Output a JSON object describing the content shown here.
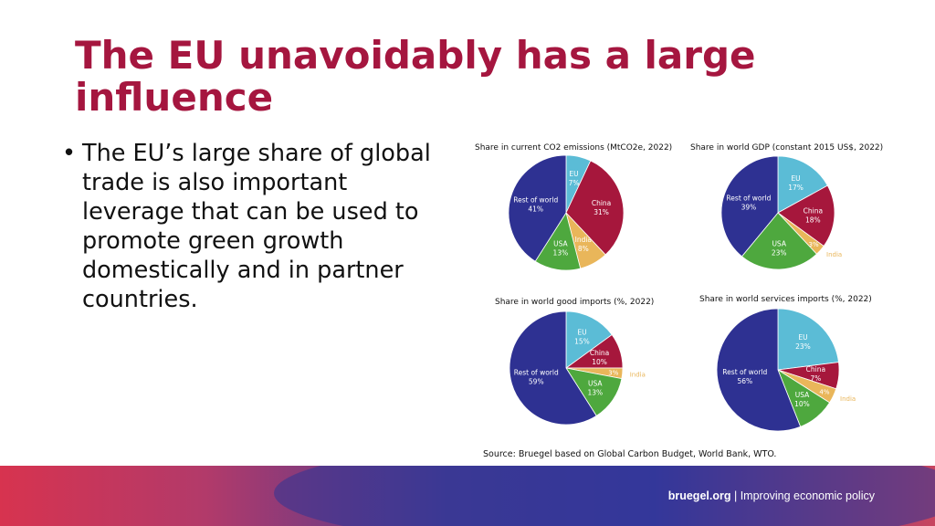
{
  "title": "The EU unavoidably has a large influence",
  "bullets": [
    "The EU’s large share of global trade is also important leverage that can be used to promote green growth domestically and in partner countries."
  ],
  "source": "Source: Bruegel based on Global Carbon Budget, World Bank, WTO.",
  "footer": {
    "site": "bruegel.org",
    "separator": "|",
    "tagline": "Improving economic policy"
  },
  "colors": {
    "title": "#a5163f",
    "EU": "#5bbcd6",
    "China": "#a6173c",
    "India": "#e9b65a",
    "USA": "#4ea83e",
    "Rest of world": "#2e3192"
  },
  "chart_data": [
    {
      "type": "pie",
      "title": "Share in current CO2 emissions (MtCO2e, 2022)",
      "labels": [
        "EU",
        "China",
        "India",
        "USA",
        "Rest of world"
      ],
      "values": [
        7,
        31,
        8,
        13,
        41
      ],
      "value_labels": [
        "7%",
        "31%",
        "8%",
        "13%",
        "41%"
      ]
    },
    {
      "type": "pie",
      "title": "Share in world GDP (constant 2015 US$, 2022)",
      "labels": [
        "EU",
        "China",
        "India",
        "USA",
        "Rest of world"
      ],
      "values": [
        17,
        18,
        3,
        23,
        39
      ],
      "value_labels": [
        "17%",
        "18%",
        "3%",
        "23%",
        "39%"
      ]
    },
    {
      "type": "pie",
      "title": "Share in world good imports (%, 2022)",
      "labels": [
        "EU",
        "China",
        "India",
        "USA",
        "Rest of world"
      ],
      "values": [
        15,
        10,
        3,
        13,
        59
      ],
      "value_labels": [
        "15%",
        "10%",
        "3%",
        "13%",
        "59%"
      ]
    },
    {
      "type": "pie",
      "title": "Share in world  services imports (%, 2022)",
      "labels": [
        "EU",
        "China",
        "India",
        "USA",
        "Rest of world"
      ],
      "values": [
        23,
        7,
        4,
        10,
        56
      ],
      "value_labels": [
        "23%",
        "7%",
        "4%",
        "10%",
        "56%"
      ]
    }
  ]
}
